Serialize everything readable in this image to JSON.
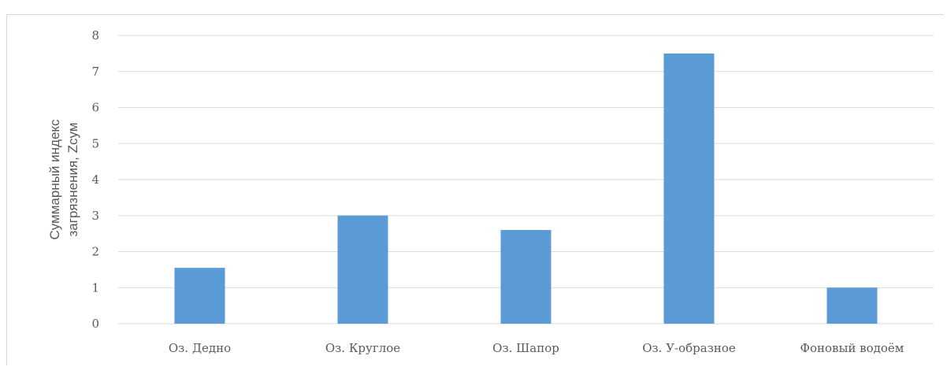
{
  "chart_data": {
    "type": "bar",
    "categories": [
      "Оз. Дедно",
      "Оз. Круглое",
      "Оз. Шапор",
      "Оз. У-образное",
      "Фоновый водоём"
    ],
    "values": [
      1.55,
      3.0,
      2.6,
      7.5,
      1.0
    ],
    "title": "",
    "xlabel": "",
    "ylabel_lines": [
      "Суммарный индекс",
      "загрязнения, Zсум"
    ],
    "ylim": [
      0,
      8
    ],
    "yticks": [
      0,
      1,
      2,
      3,
      4,
      5,
      6,
      7,
      8
    ],
    "grid": true,
    "legend": "none",
    "colors": {
      "bar": "#5b9bd5",
      "grid": "#d9d9d9",
      "text": "#595959"
    }
  }
}
